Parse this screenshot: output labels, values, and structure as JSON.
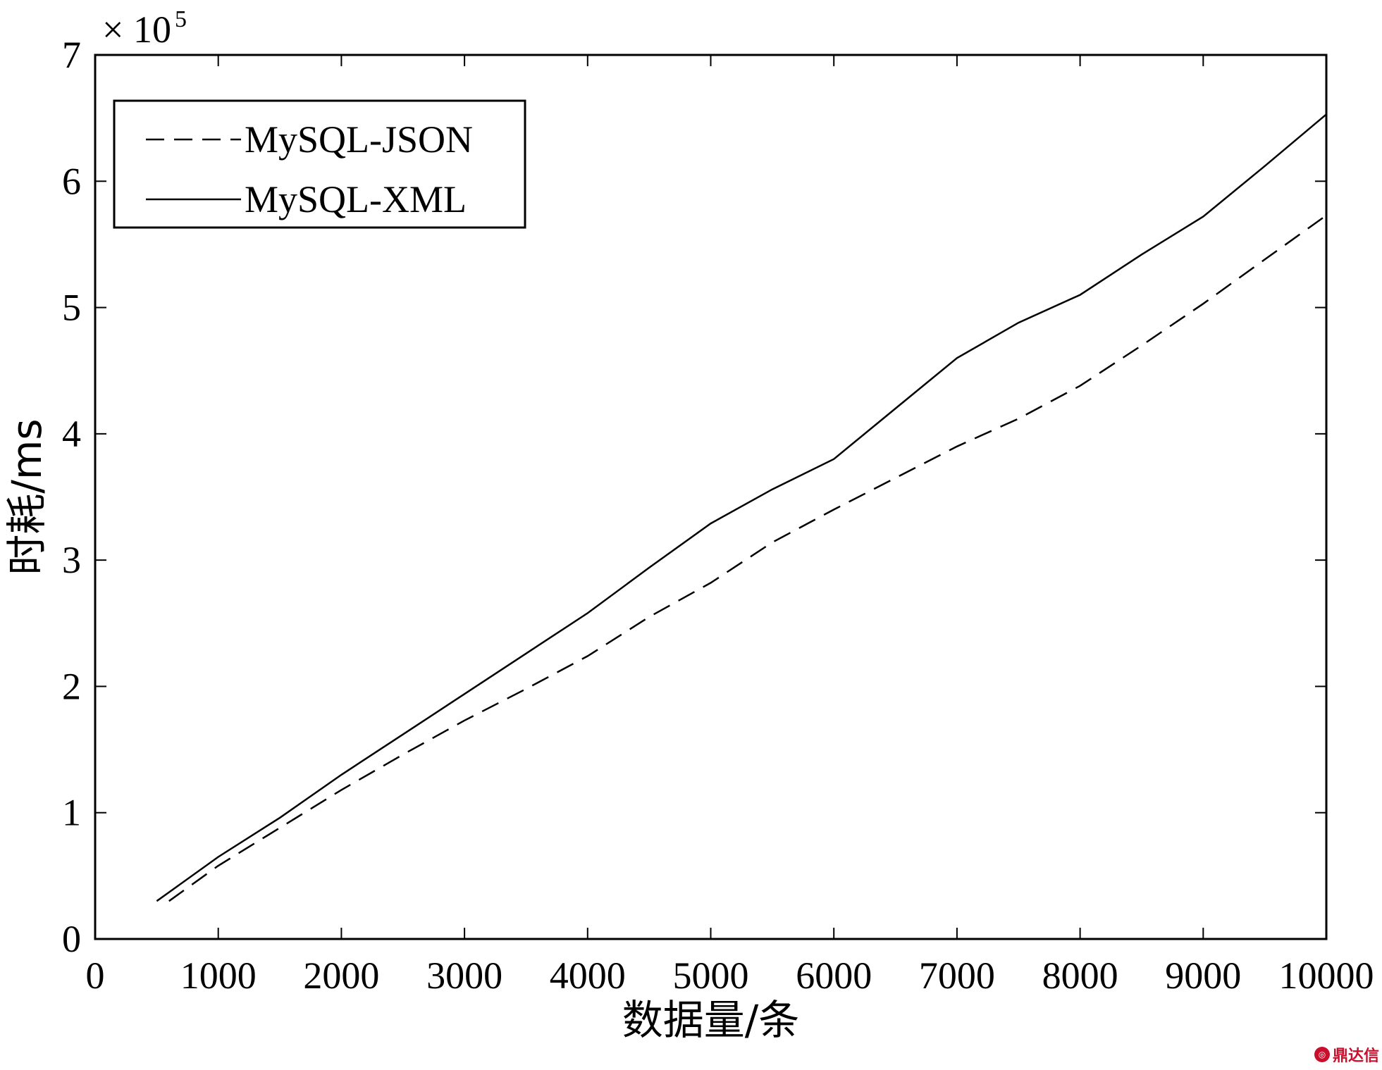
{
  "chart_data": {
    "type": "line",
    "xlabel": "数据量/条",
    "ylabel": "时耗/ms",
    "y_multiplier": "× 10",
    "y_multiplier_exp": "5",
    "xlim": [
      0,
      10000
    ],
    "ylim": [
      0,
      7
    ],
    "xticks": [
      0,
      1000,
      2000,
      3000,
      4000,
      5000,
      6000,
      7000,
      8000,
      9000,
      10000
    ],
    "yticks": [
      0,
      1,
      2,
      3,
      4,
      5,
      6,
      7
    ],
    "legend_position": "top-left",
    "grid": false,
    "series": [
      {
        "name": "MySQL-JSON",
        "style": "dashed",
        "color": "#000000",
        "x": [
          600,
          1000,
          1500,
          2000,
          2500,
          3000,
          3500,
          4000,
          4500,
          5000,
          5500,
          6000,
          6500,
          7000,
          7500,
          8000,
          8500,
          9000,
          9500,
          10000
        ],
        "y": [
          0.3,
          0.58,
          0.88,
          1.18,
          1.46,
          1.73,
          1.98,
          2.24,
          2.55,
          2.82,
          3.14,
          3.4,
          3.65,
          3.9,
          4.12,
          4.38,
          4.7,
          5.03,
          5.38,
          5.73
        ]
      },
      {
        "name": "MySQL-XML",
        "style": "solid",
        "color": "#000000",
        "x": [
          500,
          1000,
          1500,
          2000,
          2500,
          3000,
          3500,
          4000,
          4500,
          5000,
          5500,
          6000,
          6500,
          7000,
          7500,
          8000,
          8500,
          9000,
          9500,
          10000
        ],
        "y": [
          0.3,
          0.65,
          0.96,
          1.3,
          1.62,
          1.94,
          2.26,
          2.58,
          2.94,
          3.29,
          3.56,
          3.8,
          4.2,
          4.6,
          4.88,
          5.1,
          5.42,
          5.72,
          6.12,
          6.53
        ]
      }
    ]
  },
  "watermark": {
    "text": "鼎达信",
    "color": "#c8102e"
  }
}
